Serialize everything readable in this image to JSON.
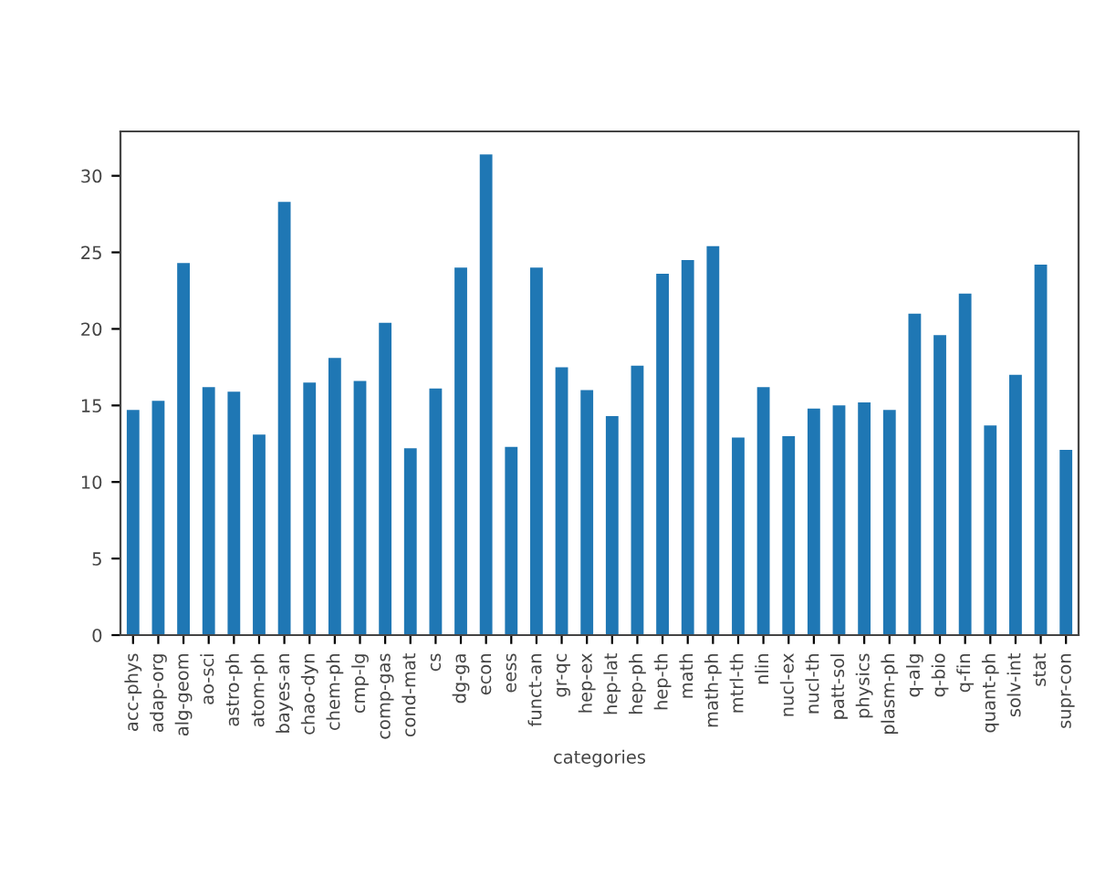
{
  "chart_data": {
    "type": "bar",
    "xlabel": "categories",
    "categories": [
      "acc-phys",
      "adap-org",
      "alg-geom",
      "ao-sci",
      "astro-ph",
      "atom-ph",
      "bayes-an",
      "chao-dyn",
      "chem-ph",
      "cmp-lg",
      "comp-gas",
      "cond-mat",
      "cs",
      "dg-ga",
      "econ",
      "eess",
      "funct-an",
      "gr-qc",
      "hep-ex",
      "hep-lat",
      "hep-ph",
      "hep-th",
      "math",
      "math-ph",
      "mtrl-th",
      "nlin",
      "nucl-ex",
      "nucl-th",
      "patt-sol",
      "physics",
      "plasm-ph",
      "q-alg",
      "q-bio",
      "q-fin",
      "quant-ph",
      "solv-int",
      "stat",
      "supr-con"
    ],
    "values": [
      14.7,
      15.3,
      24.3,
      16.2,
      15.9,
      13.1,
      28.3,
      16.5,
      18.1,
      16.6,
      20.4,
      12.2,
      16.1,
      24.0,
      31.4,
      12.3,
      24.0,
      17.5,
      16.0,
      14.3,
      17.6,
      23.6,
      24.5,
      25.4,
      12.9,
      16.2,
      13.0,
      14.8,
      15.0,
      15.2,
      14.7,
      21.0,
      19.6,
      22.3,
      13.7,
      17.0,
      24.2,
      12.1
    ],
    "color": "#1f77b4",
    "ylim": [
      0,
      32.9
    ],
    "yticks": [
      0,
      5,
      10,
      15,
      20,
      25,
      30
    ],
    "grid": false,
    "legend": false
  }
}
